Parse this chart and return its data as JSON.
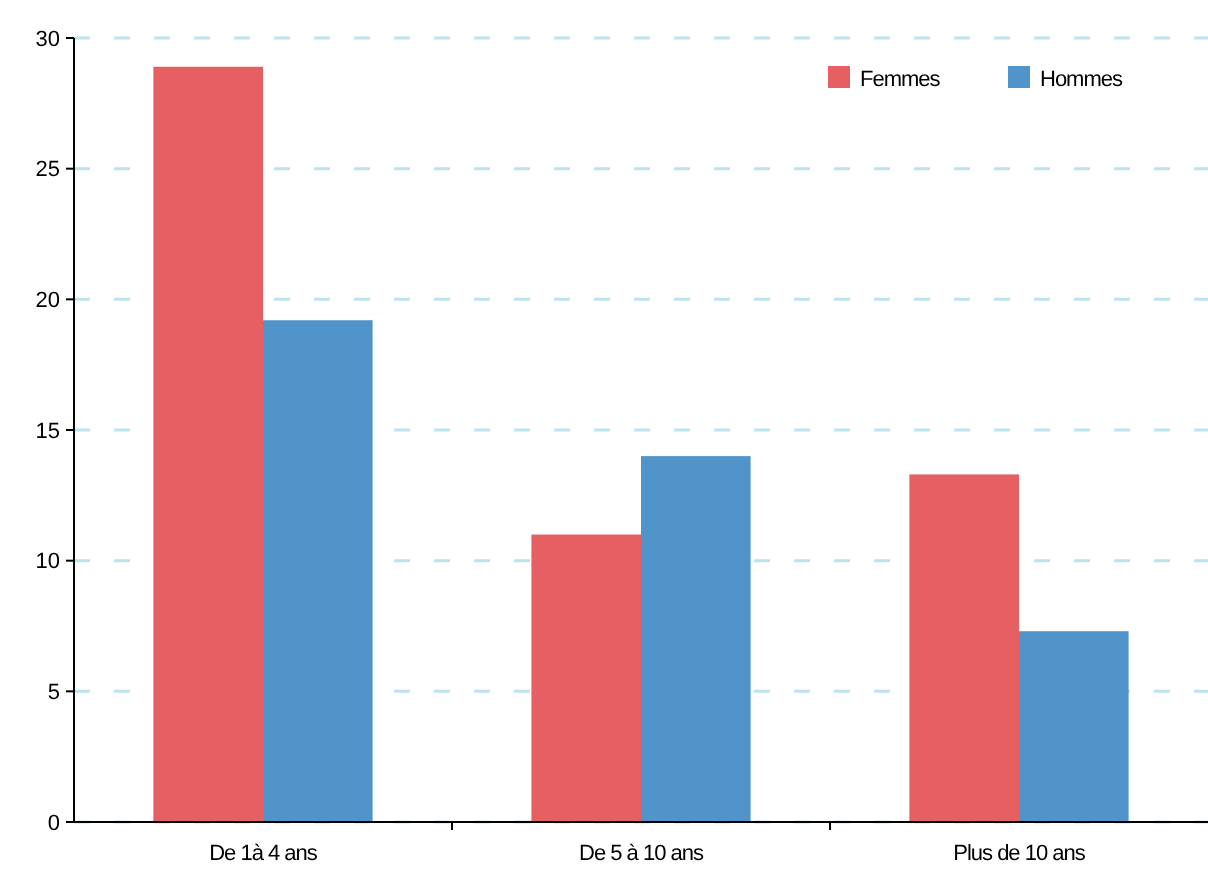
{
  "chart_data": {
    "type": "bar",
    "categories": [
      "De 1à 4 ans",
      "De 5 à 10 ans",
      "Plus de 10 ans"
    ],
    "series": [
      {
        "name": "Femmes",
        "color": "#e55f63",
        "values": [
          28.9,
          11.0,
          13.3
        ]
      },
      {
        "name": "Hommes",
        "color": "#5094c9",
        "values": [
          19.2,
          14.0,
          7.3
        ]
      }
    ],
    "ylim": [
      0,
      30
    ],
    "yticks": [
      0,
      5,
      10,
      15,
      20,
      25,
      30
    ],
    "grid": "y",
    "legend": "top right"
  }
}
